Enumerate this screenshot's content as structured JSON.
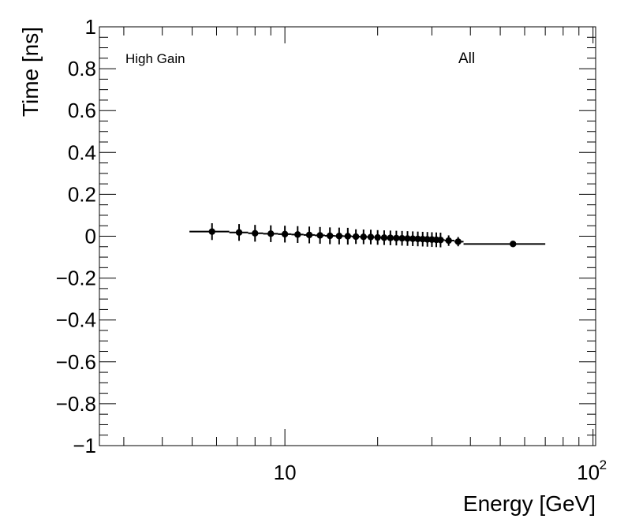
{
  "chart_data": {
    "type": "scatter",
    "title": "",
    "xlabel": "Energy [GeV]",
    "ylabel": "Time [ns]",
    "x_scale": "log",
    "xlim": [
      2.5,
      102
    ],
    "ylim": [
      -1,
      1
    ],
    "x_tick_labels": [
      {
        "value": 10,
        "label": "10"
      },
      {
        "value": 100,
        "label": "10",
        "exponent": "2"
      }
    ],
    "y_tick_labels": [
      "1",
      "0.8",
      "0.6",
      "0.4",
      "0.2",
      "0",
      "−0.2",
      "−0.4",
      "−0.6",
      "−0.8",
      "−1"
    ],
    "y_tick_values": [
      1,
      0.8,
      0.6,
      0.4,
      0.2,
      0,
      -0.2,
      -0.4,
      -0.6,
      -0.8,
      -1
    ],
    "grid": false,
    "annotations": [
      "High Gain",
      "All"
    ],
    "series": [
      {
        "marker_color": "#000000",
        "points": [
          {
            "x": 5.8,
            "y": 0.022,
            "xlo": 4.9,
            "xhi": 6.6,
            "err": 0.04
          },
          {
            "x": 7.1,
            "y": 0.018,
            "xlo": 6.6,
            "xhi": 7.6,
            "err": 0.04
          },
          {
            "x": 8.0,
            "y": 0.014,
            "xlo": 7.6,
            "xhi": 8.5,
            "err": 0.04
          },
          {
            "x": 9.0,
            "y": 0.012,
            "xlo": 8.5,
            "xhi": 9.5,
            "err": 0.04
          },
          {
            "x": 10.0,
            "y": 0.01,
            "xlo": 9.5,
            "xhi": 10.5,
            "err": 0.04
          },
          {
            "x": 11.0,
            "y": 0.008,
            "xlo": 10.5,
            "xhi": 11.5,
            "err": 0.04
          },
          {
            "x": 12.0,
            "y": 0.006,
            "xlo": 11.5,
            "xhi": 12.5,
            "err": 0.04
          },
          {
            "x": 13.0,
            "y": 0.004,
            "xlo": 12.5,
            "xhi": 13.5,
            "err": 0.04
          },
          {
            "x": 14.0,
            "y": 0.002,
            "xlo": 13.5,
            "xhi": 14.5,
            "err": 0.04
          },
          {
            "x": 15.0,
            "y": 0.001,
            "xlo": 14.5,
            "xhi": 15.5,
            "err": 0.04
          },
          {
            "x": 16.0,
            "y": 0.0,
            "xlo": 15.5,
            "xhi": 16.5,
            "err": 0.04
          },
          {
            "x": 17.0,
            "y": -0.002,
            "xlo": 16.5,
            "xhi": 17.5,
            "err": 0.035
          },
          {
            "x": 18.0,
            "y": -0.003,
            "xlo": 17.5,
            "xhi": 18.5,
            "err": 0.035
          },
          {
            "x": 19.0,
            "y": -0.004,
            "xlo": 18.5,
            "xhi": 19.5,
            "err": 0.035
          },
          {
            "x": 20.0,
            "y": -0.006,
            "xlo": 19.5,
            "xhi": 20.5,
            "err": 0.035
          },
          {
            "x": 21.0,
            "y": -0.007,
            "xlo": 20.5,
            "xhi": 21.5,
            "err": 0.035
          },
          {
            "x": 22.0,
            "y": -0.008,
            "xlo": 21.5,
            "xhi": 22.5,
            "err": 0.035
          },
          {
            "x": 23.0,
            "y": -0.009,
            "xlo": 22.5,
            "xhi": 23.5,
            "err": 0.035
          },
          {
            "x": 24.0,
            "y": -0.01,
            "xlo": 23.5,
            "xhi": 24.5,
            "err": 0.035
          },
          {
            "x": 25.0,
            "y": -0.011,
            "xlo": 24.5,
            "xhi": 25.5,
            "err": 0.035
          },
          {
            "x": 26.0,
            "y": -0.012,
            "xlo": 25.5,
            "xhi": 26.5,
            "err": 0.035
          },
          {
            "x": 27.0,
            "y": -0.013,
            "xlo": 26.5,
            "xhi": 27.5,
            "err": 0.035
          },
          {
            "x": 28.0,
            "y": -0.014,
            "xlo": 27.5,
            "xhi": 28.5,
            "err": 0.035
          },
          {
            "x": 29.0,
            "y": -0.015,
            "xlo": 28.5,
            "xhi": 29.5,
            "err": 0.035
          },
          {
            "x": 30.0,
            "y": -0.016,
            "xlo": 29.5,
            "xhi": 30.5,
            "err": 0.035
          },
          {
            "x": 31.0,
            "y": -0.017,
            "xlo": 30.5,
            "xhi": 31.5,
            "err": 0.035
          },
          {
            "x": 32.0,
            "y": -0.018,
            "xlo": 31.5,
            "xhi": 33.0,
            "err": 0.035
          },
          {
            "x": 34.0,
            "y": -0.021,
            "xlo": 33.0,
            "xhi": 35.5,
            "err": 0.025
          },
          {
            "x": 36.5,
            "y": -0.026,
            "xlo": 35.5,
            "xhi": 38.0,
            "err": 0.022
          },
          {
            "x": 55.0,
            "y": -0.037,
            "xlo": 38.0,
            "xhi": 70.0,
            "err": 0.006
          }
        ]
      }
    ]
  }
}
